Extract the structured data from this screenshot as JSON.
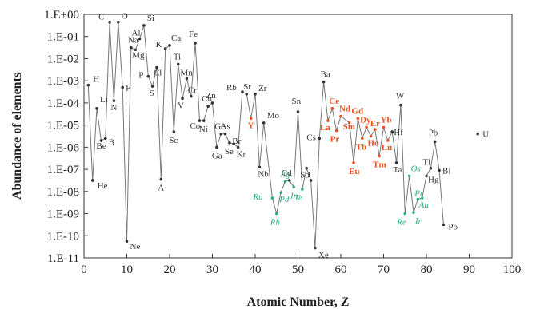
{
  "chart_data": {
    "type": "line",
    "title": "",
    "xlabel": "Atomic Number, Z",
    "ylabel": "Abundance of elements",
    "xlim": [
      0,
      100
    ],
    "ylim_log10": [
      -11,
      0
    ],
    "y_scale": "log",
    "x_ticks": [
      0,
      10,
      20,
      30,
      40,
      50,
      60,
      70,
      80,
      90,
      100
    ],
    "y_ticks": [
      {
        "value": -11,
        "label": "1.E-11"
      },
      {
        "value": -10,
        "label": "1.E-10"
      },
      {
        "value": -9,
        "label": "1.E-09"
      },
      {
        "value": -8,
        "label": "1.E-08"
      },
      {
        "value": -7,
        "label": "1.E-07"
      },
      {
        "value": -6,
        "label": "1.E-06"
      },
      {
        "value": -5,
        "label": "1.E-05"
      },
      {
        "value": -4,
        "label": "1.E-04"
      },
      {
        "value": -3,
        "label": "1.E-03"
      },
      {
        "value": -2,
        "label": "1.E-02"
      },
      {
        "value": -1,
        "label": "1.E-01"
      },
      {
        "value": 0,
        "label": "1.E+00"
      }
    ],
    "grid": false,
    "legend": "none",
    "colors": {
      "default": "#333333",
      "rare_earth": "#e8501f",
      "precious": "#2bb07f",
      "line": "#777777"
    },
    "points": [
      {
        "z": 1,
        "logy": -3.2,
        "label": "H",
        "group": "default"
      },
      {
        "z": 2,
        "logy": -7.5,
        "label": "He",
        "group": "default"
      },
      {
        "z": 3,
        "logy": -4.25,
        "label": "Li",
        "group": "default"
      },
      {
        "z": 4,
        "logy": -5.7,
        "label": "Be",
        "group": "default"
      },
      {
        "z": 5,
        "logy": -5.6,
        "label": "B",
        "group": "default"
      },
      {
        "z": 6,
        "logy": -0.35,
        "label": "C",
        "group": "default"
      },
      {
        "z": 7,
        "logy": -3.9,
        "label": "N",
        "group": "default"
      },
      {
        "z": 8,
        "logy": -0.35,
        "label": "O",
        "group": "default"
      },
      {
        "z": 9,
        "logy": -3.3,
        "label": "F",
        "group": "default"
      },
      {
        "z": 10,
        "logy": -10.25,
        "label": "Ne",
        "group": "default"
      },
      {
        "z": 11,
        "logy": -1.5,
        "label": "Na",
        "group": "default"
      },
      {
        "z": 12,
        "logy": -1.6,
        "label": "Mg",
        "group": "default"
      },
      {
        "z": 13,
        "logy": -1.1,
        "label": "Al",
        "group": "default"
      },
      {
        "z": 14,
        "logy": -0.5,
        "label": "Si",
        "group": "default"
      },
      {
        "z": 15,
        "logy": -2.8,
        "label": "P",
        "group": "default"
      },
      {
        "z": 16,
        "logy": -3.25,
        "label": "S",
        "group": "default"
      },
      {
        "z": 17,
        "logy": -2.4,
        "label": "Cl",
        "group": "default"
      },
      {
        "z": 18,
        "logy": -7.45,
        "label": "A",
        "group": "default"
      },
      {
        "z": 19,
        "logy": -1.55,
        "label": "K",
        "group": "default"
      },
      {
        "z": 20,
        "logy": -1.4,
        "label": "Ca",
        "group": "default"
      },
      {
        "z": 21,
        "logy": -5.3,
        "label": "Sc",
        "group": "default"
      },
      {
        "z": 22,
        "logy": -2.25,
        "label": "Ti",
        "group": "default"
      },
      {
        "z": 23,
        "logy": -3.8,
        "label": "V",
        "group": "default"
      },
      {
        "z": 24,
        "logy": -2.9,
        "label": "Mn",
        "group": "default"
      },
      {
        "z": 25,
        "logy": -3.7,
        "label": "Cr",
        "group": "default"
      },
      {
        "z": 26,
        "logy": -1.3,
        "label": "Fe",
        "group": "default"
      },
      {
        "z": 27,
        "logy": -4.8,
        "label": "Co",
        "group": "default"
      },
      {
        "z": 28,
        "logy": -4.8,
        "label": "Ni",
        "group": "default"
      },
      {
        "z": 29,
        "logy": -4.15,
        "label": "Cu",
        "group": "default"
      },
      {
        "z": 30,
        "logy": -4.0,
        "label": "Zn",
        "group": "default"
      },
      {
        "z": 31,
        "logy": -6.0,
        "label": "Ga",
        "group": "default"
      },
      {
        "z": 32,
        "logy": -5.4,
        "label": "Ge",
        "group": "default"
      },
      {
        "z": 33,
        "logy": -5.4,
        "label": "As",
        "group": "default"
      },
      {
        "z": 34,
        "logy": -5.8,
        "label": "Se",
        "group": "default"
      },
      {
        "z": 35,
        "logy": -5.85,
        "label": "Br",
        "group": "default"
      },
      {
        "z": 36,
        "logy": -6.0,
        "label": "Kr",
        "group": "default"
      },
      {
        "z": 37,
        "logy": -3.5,
        "label": "Rb",
        "group": "default"
      },
      {
        "z": 38,
        "logy": -3.6,
        "label": "Sr",
        "group": "default"
      },
      {
        "z": 39,
        "logy": -4.7,
        "label": "Y",
        "group": "rare_earth"
      },
      {
        "z": 40,
        "logy": -3.6,
        "label": "Zr",
        "group": "default"
      },
      {
        "z": 41,
        "logy": -6.9,
        "label": "Nb",
        "group": "default"
      },
      {
        "z": 42,
        "logy": -4.9,
        "label": "Mo",
        "group": "default"
      },
      {
        "z": 44,
        "logy": -8.3,
        "label": "Ru",
        "group": "precious"
      },
      {
        "z": 45,
        "logy": -9.0,
        "label": "Rh",
        "group": "precious"
      },
      {
        "z": 46,
        "logy": -8.05,
        "label": "Pd",
        "group": "precious"
      },
      {
        "z": 47,
        "logy": -7.55,
        "label": "Ag",
        "group": "precious"
      },
      {
        "z": 48,
        "logy": -7.5,
        "label": "Cd",
        "group": "default"
      },
      {
        "z": 49,
        "logy": -7.8,
        "label": "In",
        "group": "precious"
      },
      {
        "z": 50,
        "logy": -4.4,
        "label": "Sn",
        "group": "default"
      },
      {
        "z": 51,
        "logy": -7.9,
        "label": "Te",
        "group": "precious"
      },
      {
        "z": 52,
        "logy": -6.95,
        "label": "Sb",
        "group": "default"
      },
      {
        "z": 53,
        "logy": -7.5,
        "label": "I",
        "group": "default"
      },
      {
        "z": 54,
        "logy": -10.55,
        "label": "Xe",
        "group": "default"
      },
      {
        "z": 55,
        "logy": -5.6,
        "label": "Cs",
        "group": "default"
      },
      {
        "z": 56,
        "logy": -3.05,
        "label": "Ba",
        "group": "default"
      },
      {
        "z": 57,
        "logy": -4.8,
        "label": "La",
        "group": "rare_earth"
      },
      {
        "z": 58,
        "logy": -4.25,
        "label": "Ce",
        "group": "rare_earth"
      },
      {
        "z": 59,
        "logy": -5.25,
        "label": "Pr",
        "group": "rare_earth"
      },
      {
        "z": 60,
        "logy": -4.6,
        "label": "Nd",
        "group": "rare_earth"
      },
      {
        "z": 62,
        "logy": -4.9,
        "label": "Sm",
        "group": "rare_earth"
      },
      {
        "z": 63,
        "logy": -6.7,
        "label": "Eu",
        "group": "rare_earth"
      },
      {
        "z": 64,
        "logy": -4.7,
        "label": "Gd",
        "group": "rare_earth"
      },
      {
        "z": 65,
        "logy": -5.6,
        "label": "Tb",
        "group": "rare_earth"
      },
      {
        "z": 66,
        "logy": -5.1,
        "label": "Dy",
        "group": "rare_earth"
      },
      {
        "z": 67,
        "logy": -5.5,
        "label": "Ho",
        "group": "rare_earth"
      },
      {
        "z": 68,
        "logy": -5.2,
        "label": "Er",
        "group": "rare_earth"
      },
      {
        "z": 69,
        "logy": -6.4,
        "label": "Tm",
        "group": "rare_earth"
      },
      {
        "z": 70,
        "logy": -5.1,
        "label": "Yb",
        "group": "rare_earth"
      },
      {
        "z": 71,
        "logy": -5.7,
        "label": "Lu",
        "group": "rare_earth"
      },
      {
        "z": 72,
        "logy": -5.3,
        "label": "Hf",
        "group": "default"
      },
      {
        "z": 73,
        "logy": -6.7,
        "label": "Ta",
        "group": "default"
      },
      {
        "z": 74,
        "logy": -4.1,
        "label": "W",
        "group": "default"
      },
      {
        "z": 75,
        "logy": -9.0,
        "label": "Re",
        "group": "precious"
      },
      {
        "z": 76,
        "logy": -7.3,
        "label": "Os",
        "group": "precious"
      },
      {
        "z": 77,
        "logy": -8.95,
        "label": "Ir",
        "group": "precious"
      },
      {
        "z": 78,
        "logy": -8.35,
        "label": "Pt",
        "group": "precious"
      },
      {
        "z": 79,
        "logy": -8.3,
        "label": "Au",
        "group": "precious"
      },
      {
        "z": 80,
        "logy": -7.3,
        "label": "Hg",
        "group": "default"
      },
      {
        "z": 81,
        "logy": -6.95,
        "label": "Tl",
        "group": "default"
      },
      {
        "z": 82,
        "logy": -5.75,
        "label": "Pb",
        "group": "default"
      },
      {
        "z": 83,
        "logy": -7.05,
        "label": "Bi",
        "group": "default"
      },
      {
        "z": 84,
        "logy": -9.5,
        "label": "Po",
        "group": "default"
      },
      {
        "z": 92,
        "logy": -5.4,
        "label": "U",
        "group": "default"
      }
    ]
  }
}
